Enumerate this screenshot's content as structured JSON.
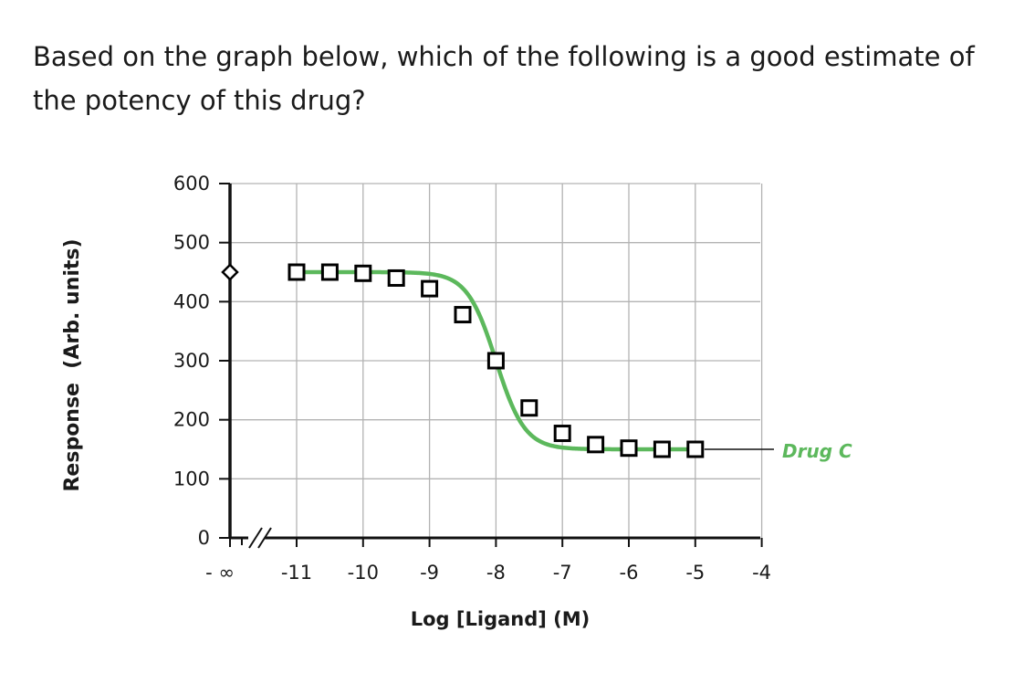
{
  "question": {
    "text": "Based on the graph below, which of the following is a good estimate of the potency of this drug?"
  },
  "chart_data": {
    "type": "scatter",
    "title": "",
    "xlabel": "Log [Ligand] (M)",
    "ylabel": "Response  (Arb. units)",
    "xlim": [
      -11.9,
      -4
    ],
    "ylim": [
      0,
      600
    ],
    "grid": true,
    "x_ticks": [
      -11,
      -10,
      -9,
      -8,
      -7,
      -6,
      -5,
      -4
    ],
    "x_tick_labels": [
      "-11",
      "-10",
      "-9",
      "-8",
      "-7",
      "-6",
      "-5",
      "-4"
    ],
    "y_ticks": [
      0,
      100,
      200,
      300,
      400,
      500,
      600
    ],
    "y_tick_labels": [
      "0",
      "100",
      "200",
      "300",
      "400",
      "500",
      "600"
    ],
    "x_break_label": "- ∞",
    "baseline_point": {
      "x": "- ∞",
      "y": 450
    },
    "series": [
      {
        "name": "Drug C",
        "color": "#5cb85c",
        "marker": "square",
        "x": [
          -11,
          -10.5,
          -10,
          -9.5,
          -9,
          -8.5,
          -8,
          -7.5,
          -7,
          -6.5,
          -6,
          -5.5,
          -5
        ],
        "y": [
          450,
          450,
          448,
          440,
          422,
          378,
          300,
          220,
          177,
          158,
          152,
          150,
          150
        ]
      }
    ],
    "curve": {
      "top": 450,
      "bottom": 150,
      "log_ec50": -8,
      "hill_slope": 1,
      "color": "#5cb85c"
    },
    "legend": "right"
  }
}
